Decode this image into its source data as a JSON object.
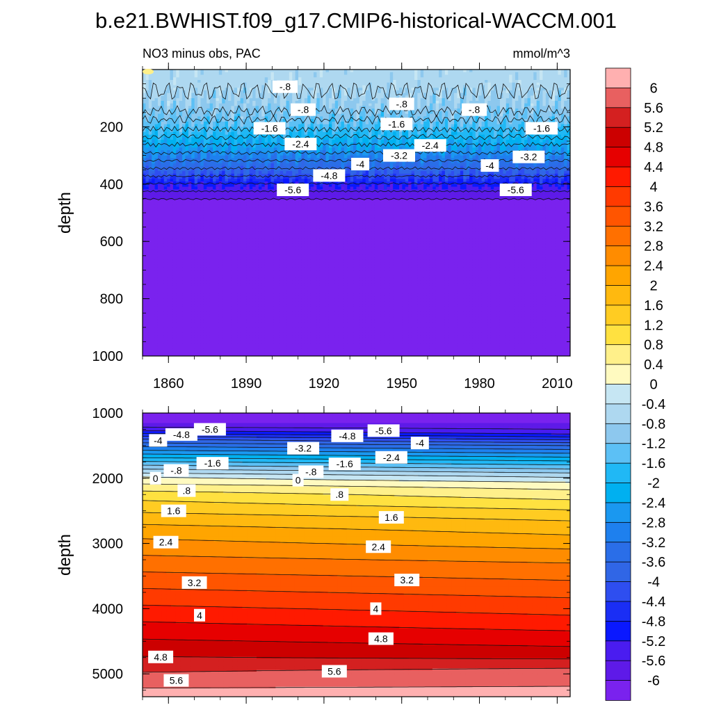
{
  "title": "b.e21.BWHIST.f09_g17.CMIP6-historical-WACCM.001",
  "panel_left_label": "NO3 minus obs, PAC",
  "units": "mmol/m^3",
  "chart_data": [
    {
      "type": "heatmap",
      "name": "upper-panel",
      "subtitle": "NO3 minus obs, PAC",
      "units": "mmol/m^3",
      "xlabel": "",
      "ylabel": "depth",
      "xlim": [
        1850,
        2015
      ],
      "ylim": [
        1000,
        0
      ],
      "x_ticks": [
        "1860",
        "1890",
        "1920",
        "1950",
        "1980",
        "2010"
      ],
      "y_ticks": [
        "200",
        "400",
        "600",
        "800",
        "1000"
      ],
      "depth_profile": [
        {
          "depth": 0,
          "value": -0.6
        },
        {
          "depth": 50,
          "value": -0.6
        },
        {
          "depth": 120,
          "value": -0.9
        },
        {
          "depth": 180,
          "value": -1.3
        },
        {
          "depth": 230,
          "value": -1.9
        },
        {
          "depth": 280,
          "value": -2.6
        },
        {
          "depth": 330,
          "value": -3.4
        },
        {
          "depth": 370,
          "value": -4.2
        },
        {
          "depth": 400,
          "value": -5.0
        },
        {
          "depth": 430,
          "value": -5.7
        },
        {
          "depth": 460,
          "value": -6.1
        },
        {
          "depth": 1000,
          "value": -6.1
        }
      ],
      "contour_labels": [
        {
          "text": "-.8",
          "x": 1905,
          "depth": 60
        },
        {
          "text": "-.8",
          "x": 1912,
          "depth": 140
        },
        {
          "text": "-.8",
          "x": 1950,
          "depth": 120
        },
        {
          "text": "-.8",
          "x": 1978,
          "depth": 140
        },
        {
          "text": "-1.6",
          "x": 1899,
          "depth": 205
        },
        {
          "text": "-1.6",
          "x": 1948,
          "depth": 190
        },
        {
          "text": "-1.6",
          "x": 2004,
          "depth": 205
        },
        {
          "text": "-2.4",
          "x": 1911,
          "depth": 260
        },
        {
          "text": "-2.4",
          "x": 1961,
          "depth": 265
        },
        {
          "text": "-3.2",
          "x": 1949,
          "depth": 300
        },
        {
          "text": "-3.2",
          "x": 1999,
          "depth": 305
        },
        {
          "text": "-4",
          "x": 1934,
          "depth": 330
        },
        {
          "text": "-4",
          "x": 1984,
          "depth": 335
        },
        {
          "text": "-4.8",
          "x": 1922,
          "depth": 370
        },
        {
          "text": "-5.6",
          "x": 1908,
          "depth": 420
        },
        {
          "text": "-5.6",
          "x": 1994,
          "depth": 420
        }
      ]
    },
    {
      "type": "heatmap",
      "name": "lower-panel",
      "xlabel": "",
      "ylabel": "depth",
      "xlim": [
        1850,
        2015
      ],
      "ylim": [
        5350,
        1000
      ],
      "y_ticks": [
        "1000",
        "2000",
        "3000",
        "4000",
        "5000"
      ],
      "depth_profile_start": [
        {
          "depth": 1000,
          "value": -6.1
        },
        {
          "depth": 1150,
          "value": -6.0
        },
        {
          "depth": 1250,
          "value": -5.4
        },
        {
          "depth": 1400,
          "value": -4.0
        },
        {
          "depth": 1600,
          "value": -2.6
        },
        {
          "depth": 1800,
          "value": -1.2
        },
        {
          "depth": 1980,
          "value": 0.0
        },
        {
          "depth": 2250,
          "value": 1.0
        },
        {
          "depth": 2800,
          "value": 2.2
        },
        {
          "depth": 3500,
          "value": 3.3
        },
        {
          "depth": 4200,
          "value": 4.4
        },
        {
          "depth": 4800,
          "value": 5.3
        },
        {
          "depth": 5150,
          "value": 5.9
        },
        {
          "depth": 5350,
          "value": 6.2
        }
      ],
      "depth_profile_end": [
        {
          "depth": 1000,
          "value": -6.1
        },
        {
          "depth": 1150,
          "value": -6.0
        },
        {
          "depth": 1300,
          "value": -5.4
        },
        {
          "depth": 1500,
          "value": -3.6
        },
        {
          "depth": 1750,
          "value": -1.9
        },
        {
          "depth": 1950,
          "value": -0.6
        },
        {
          "depth": 2100,
          "value": 0.2
        },
        {
          "depth": 2600,
          "value": 1.5
        },
        {
          "depth": 3300,
          "value": 2.8
        },
        {
          "depth": 4100,
          "value": 4.0
        },
        {
          "depth": 4700,
          "value": 5.0
        },
        {
          "depth": 4950,
          "value": 5.7
        },
        {
          "depth": 5350,
          "value": 6.2
        }
      ],
      "contour_labels": [
        {
          "text": "-5.6",
          "x": 1876,
          "depth": 1250
        },
        {
          "text": "-5.6",
          "x": 1943,
          "depth": 1270
        },
        {
          "text": "-4.8",
          "x": 1865,
          "depth": 1330
        },
        {
          "text": "-4.8",
          "x": 1929,
          "depth": 1350
        },
        {
          "text": "-4",
          "x": 1856,
          "depth": 1420
        },
        {
          "text": "-4",
          "x": 1957,
          "depth": 1460
        },
        {
          "text": "-3.2",
          "x": 1912,
          "depth": 1540
        },
        {
          "text": "-2.4",
          "x": 1946,
          "depth": 1680
        },
        {
          "text": "-1.6",
          "x": 1877,
          "depth": 1770
        },
        {
          "text": "-1.6",
          "x": 1928,
          "depth": 1780
        },
        {
          "text": "-.8",
          "x": 1863,
          "depth": 1880
        },
        {
          "text": "-.8",
          "x": 1915,
          "depth": 1900
        },
        {
          "text": "0",
          "x": 1855,
          "depth": 2000
        },
        {
          "text": "0",
          "x": 1910,
          "depth": 2030
        },
        {
          "text": ".8",
          "x": 1867,
          "depth": 2190
        },
        {
          "text": ".8",
          "x": 1926,
          "depth": 2250
        },
        {
          "text": "1.6",
          "x": 1862,
          "depth": 2500
        },
        {
          "text": "1.6",
          "x": 1946,
          "depth": 2600
        },
        {
          "text": "2.4",
          "x": 1859,
          "depth": 2980
        },
        {
          "text": "2.4",
          "x": 1941,
          "depth": 3050
        },
        {
          "text": "3.2",
          "x": 1870,
          "depth": 3600
        },
        {
          "text": "3.2",
          "x": 1952,
          "depth": 3560
        },
        {
          "text": "4",
          "x": 1872,
          "depth": 4100
        },
        {
          "text": "4",
          "x": 1940,
          "depth": 4000
        },
        {
          "text": "4.8",
          "x": 1857,
          "depth": 4740
        },
        {
          "text": "4.8",
          "x": 1942,
          "depth": 4460
        },
        {
          "text": "5.6",
          "x": 1863,
          "depth": 5100
        },
        {
          "text": "5.6",
          "x": 1924,
          "depth": 4960
        }
      ]
    }
  ],
  "colorbar": {
    "labels": [
      "6",
      "5.6",
      "5.2",
      "4.8",
      "4.4",
      "4",
      "3.6",
      "3.2",
      "2.8",
      "2.4",
      "2",
      "1.6",
      "1.2",
      "0.8",
      "0.4",
      "0",
      "-0.4",
      "-0.8",
      "-1.2",
      "-1.6",
      "-2",
      "-2.4",
      "-2.8",
      "-3.2",
      "-3.6",
      "-4",
      "-4.4",
      "-4.8",
      "-5.2",
      "-5.6",
      "-6"
    ],
    "colors": [
      "#FFB0B0",
      "#E86060",
      "#D42020",
      "#CC0000",
      "#E60000",
      "#FF1A00",
      "#FF3A00",
      "#FF5500",
      "#FF7000",
      "#FF8C00",
      "#FFA500",
      "#FFB90F",
      "#FFCC22",
      "#FFE140",
      "#FFF08A",
      "#FFFAC0",
      "#C6E6F3",
      "#AED8F0",
      "#8DC8EE",
      "#5CC0F5",
      "#20B8F5",
      "#00B0F0",
      "#1A98F0",
      "#1E80EE",
      "#2A6EE8",
      "#3066E6",
      "#2E4EF0",
      "#1A2EF5",
      "#0A18FF",
      "#4A1CF0",
      "#5E1AE8",
      "#7A22EE"
    ]
  }
}
